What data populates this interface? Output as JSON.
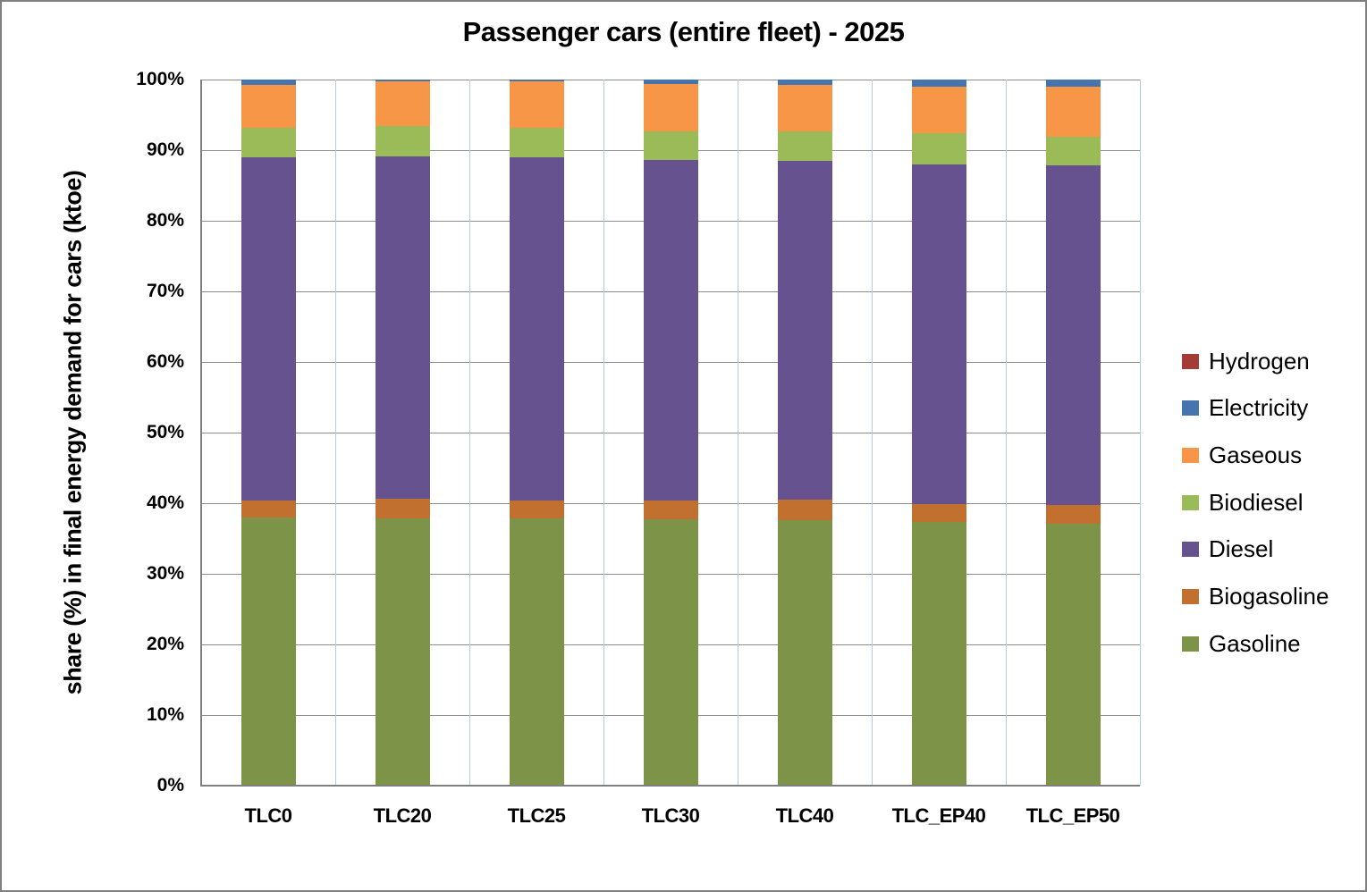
{
  "chart_data": {
    "type": "bar",
    "stacked": true,
    "title": "Passenger cars (entire fleet) - 2025",
    "ylabel": "share (%) in final energy demand for cars (ktoe)",
    "xlabel": "",
    "categories": [
      "TLC0",
      "TLC20",
      "TLC25",
      "TLC30",
      "TLC40",
      "TLC_EP40",
      "TLC_EP50"
    ],
    "ylim": [
      0,
      100
    ],
    "ytick_step": 10,
    "ytick_labels": [
      "0%",
      "10%",
      "20%",
      "30%",
      "40%",
      "50%",
      "60%",
      "70%",
      "80%",
      "90%",
      "100%"
    ],
    "grid": "horizontal gray major gridlines; light-blue vertical category separators",
    "legend_position": "right",
    "series": [
      {
        "name": "Gasoline",
        "color": "#7C9348",
        "values": [
          38.0,
          37.9,
          37.8,
          37.7,
          37.6,
          37.4,
          37.1
        ]
      },
      {
        "name": "Biogasoline",
        "color": "#C2702F",
        "values": [
          2.4,
          2.7,
          2.6,
          2.7,
          2.9,
          2.5,
          2.7
        ]
      },
      {
        "name": "Diesel",
        "color": "#675290",
        "values": [
          48.6,
          48.5,
          48.6,
          48.2,
          48.0,
          48.1,
          48.0
        ]
      },
      {
        "name": "Biodiesel",
        "color": "#9BBB59",
        "values": [
          4.2,
          4.3,
          4.2,
          4.1,
          4.2,
          4.4,
          4.1
        ]
      },
      {
        "name": "Gaseous",
        "color": "#F79646",
        "values": [
          6.1,
          6.4,
          6.5,
          6.7,
          6.6,
          6.6,
          7.1
        ]
      },
      {
        "name": "Electricity",
        "color": "#4674AE",
        "values": [
          0.7,
          0.2,
          0.3,
          0.6,
          0.7,
          1.0,
          1.0
        ]
      },
      {
        "name": "Hydrogen",
        "color": "#A43B36",
        "values": [
          0,
          0,
          0,
          0,
          0,
          0,
          0
        ]
      }
    ],
    "legend_order_top_to_bottom": [
      "Hydrogen",
      "Electricity",
      "Gaseous",
      "Biodiesel",
      "Diesel",
      "Biogasoline",
      "Gasoline"
    ]
  },
  "style_colors": {
    "background": "#FFFFFF",
    "outer_border": "#7F7F7F",
    "axis_line": "#7F7F7F",
    "gridline_horizontal": "#8E8E8E",
    "gridline_vertical": "#B4CCE0",
    "text": "#000000"
  }
}
